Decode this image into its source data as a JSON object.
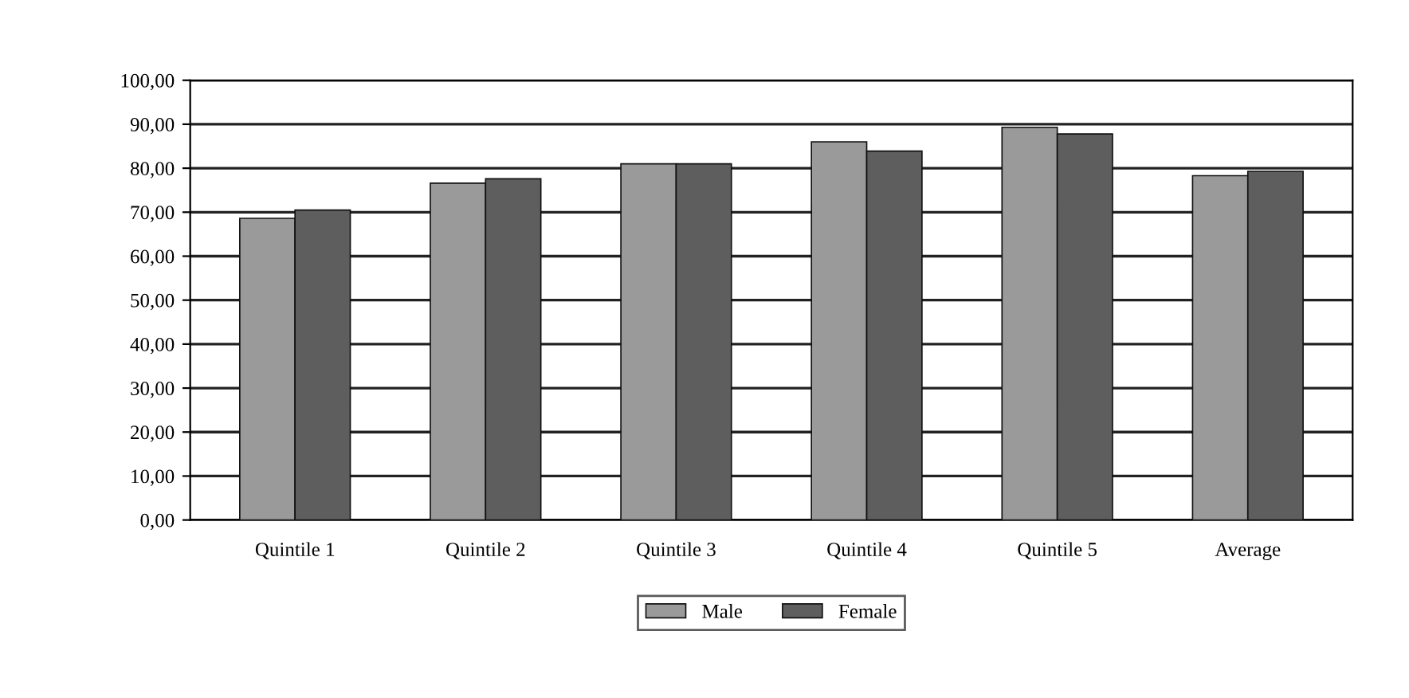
{
  "chart_data": {
    "type": "bar",
    "categories": [
      "Quintile 1",
      "Quintile 2",
      "Quintile 3",
      "Quintile 4",
      "Quintile 5",
      "Average"
    ],
    "series": [
      {
        "name": "Male",
        "color": "#9a9a9a",
        "values": [
          68.6,
          76.6,
          81.0,
          86.0,
          89.3,
          78.3
        ]
      },
      {
        "name": "Female",
        "color": "#5e5e5e",
        "values": [
          70.5,
          77.6,
          81.0,
          83.9,
          87.8,
          79.3
        ]
      }
    ],
    "ylim": [
      0,
      100
    ],
    "yticks": [
      {
        "value": 0,
        "label": "0,00"
      },
      {
        "value": 10,
        "label": "10,00"
      },
      {
        "value": 20,
        "label": "20,00"
      },
      {
        "value": 30,
        "label": "30,00"
      },
      {
        "value": 40,
        "label": "40,00"
      },
      {
        "value": 50,
        "label": "50,00"
      },
      {
        "value": 60,
        "label": "60,00"
      },
      {
        "value": 70,
        "label": "70,00"
      },
      {
        "value": 80,
        "label": "80,00"
      },
      {
        "value": 90,
        "label": "90,00"
      },
      {
        "value": 100,
        "label": "100,00"
      }
    ],
    "grid": "y",
    "legend": "bottom"
  }
}
